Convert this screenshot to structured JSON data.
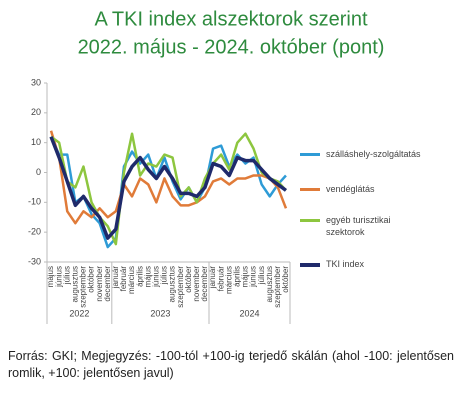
{
  "chart_data": {
    "type": "line",
    "title": [
      "A TKI index alszektorok szerint",
      "2022. május - 2024. október (pont)"
    ],
    "categories": [
      "május",
      "június",
      "július",
      "augusztus",
      "szeptember",
      "október",
      "november",
      "december",
      "január",
      "február",
      "március",
      "április",
      "május",
      "június",
      "július",
      "augusztus",
      "szeptember",
      "október",
      "november",
      "december",
      "január",
      "február",
      "március",
      "április",
      "május",
      "június",
      "július",
      "augusztus",
      "szeptember",
      "október"
    ],
    "years": [
      "2022",
      "2023",
      "2024"
    ],
    "series": [
      {
        "name": "szálláshely-szolgáltatás",
        "color": "#2e9bd6",
        "width": 2.5,
        "values": [
          12,
          6,
          6,
          -10,
          -8,
          -14,
          -17,
          -25,
          -22,
          2,
          7,
          3,
          6,
          -2,
          5,
          -3,
          -9,
          -5,
          -10,
          -5,
          8,
          9,
          2,
          6,
          3,
          5,
          -4,
          -8,
          -4,
          -1
        ]
      },
      {
        "name": "vendéglátás",
        "color": "#e07b39",
        "width": 2.5,
        "values": [
          14,
          5,
          -13,
          -17,
          -13,
          -15,
          -12,
          -15,
          -13,
          -4,
          -8,
          -2,
          -4,
          -10,
          -2,
          -8,
          -11,
          -11,
          -10,
          -8,
          -3,
          -2,
          -4,
          -2,
          -2,
          -1,
          -1,
          -2,
          -5,
          -12
        ]
      },
      {
        "name": "egyéb turisztikai szektorok",
        "color": "#8dc63f",
        "width": 2.5,
        "values": [
          12,
          10,
          -3,
          -5,
          2,
          -10,
          -15,
          -18,
          -24,
          0,
          13,
          -1,
          3,
          2,
          6,
          5,
          -8,
          -5,
          -10,
          -2,
          3,
          6,
          1,
          10,
          13,
          8,
          0,
          -2,
          -3,
          -6
        ]
      },
      {
        "name": "TKI index",
        "color": "#1f2a6b",
        "width": 3.5,
        "values": [
          12,
          5,
          -3,
          -11,
          -8,
          -12,
          -15,
          -22,
          -19,
          -3,
          2,
          5,
          1,
          -2,
          2,
          -2,
          -7,
          -7,
          -8,
          -5,
          3,
          2,
          -1,
          5,
          4,
          4,
          1,
          -2,
          -4,
          -6
        ]
      }
    ],
    "ylim": [
      -30,
      30
    ],
    "yticks": [
      -30,
      -20,
      -10,
      0,
      10,
      20,
      30
    ],
    "grid": false,
    "note": "Forrás: GKI; Megjegyzés: -100-tól +100-ig terjedő skálán (ahol -100: jelentősen romlik, +100: jelentősen javul)"
  }
}
